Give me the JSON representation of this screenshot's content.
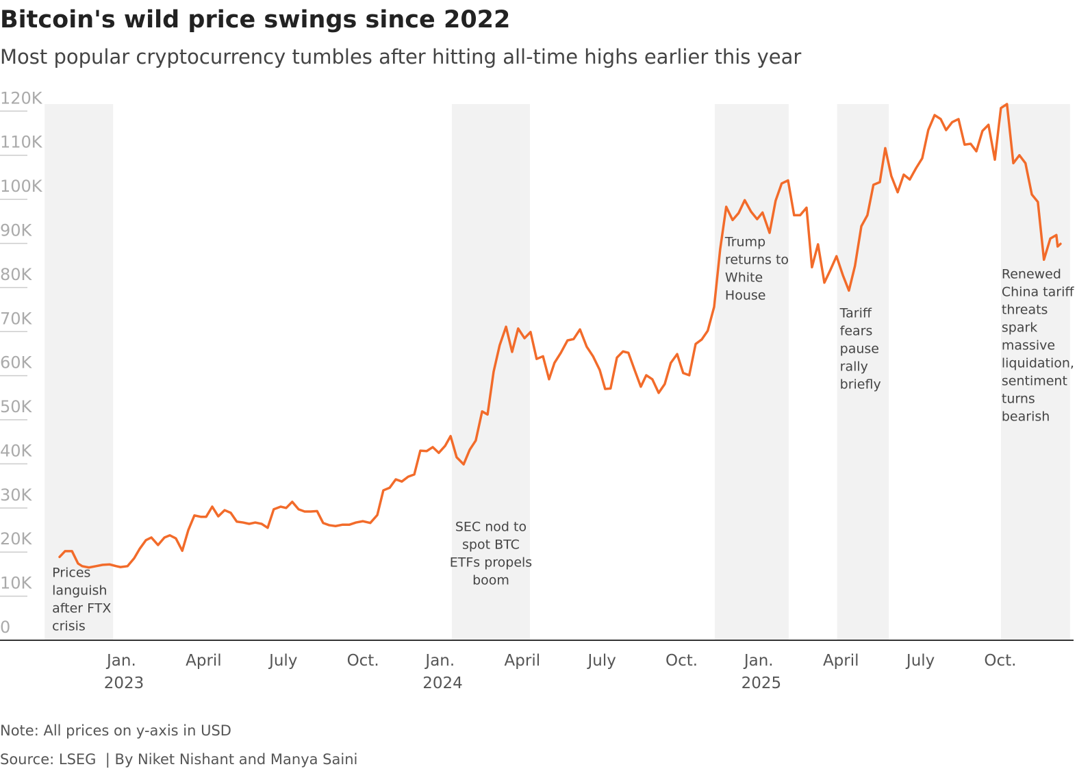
{
  "chart_data": {
    "type": "line",
    "title": "Bitcoin's wild price swings since 2022",
    "subtitle": "Most popular cryptocurrency tumbles after hitting all-time highs earlier this year",
    "note": "Note: All prices on y-axis in USD",
    "source": "Source: LSEG  | By Niket Nishant and Manya Saini",
    "color": "#f26b2a",
    "x": [
      2022.798,
      2022.815,
      2022.837,
      2022.856,
      2022.869,
      2022.89,
      2022.912,
      2022.933,
      2022.955,
      2022.976,
      2022.989,
      2023.011,
      2023.032,
      2023.049,
      2023.069,
      2023.086,
      2023.107,
      2023.127,
      2023.144,
      2023.163,
      2023.183,
      2023.202,
      2023.221,
      2023.241,
      2023.258,
      2023.277,
      2023.296,
      2023.316,
      2023.335,
      2023.354,
      2023.374,
      2023.393,
      2023.412,
      2023.432,
      2023.451,
      2023.47,
      2023.492,
      2023.509,
      2023.528,
      2023.548,
      2023.567,
      2023.586,
      2023.606,
      2023.625,
      2023.644,
      2023.664,
      2023.685,
      2023.707,
      2023.728,
      2023.75,
      2023.773,
      2023.795,
      2023.814,
      2023.834,
      2023.853,
      2023.872,
      2023.892,
      2023.911,
      2023.93,
      2023.95,
      2023.969,
      2023.988,
      2024.008,
      2024.025,
      2024.044,
      2024.066,
      2024.085,
      2024.104,
      2024.124,
      2024.141,
      2024.16,
      2024.179,
      2024.199,
      2024.218,
      2024.237,
      2024.257,
      2024.276,
      2024.295,
      2024.315,
      2024.334,
      2024.351,
      2024.371,
      2024.392,
      2024.411,
      2024.431,
      2024.452,
      2024.472,
      2024.493,
      2024.51,
      2024.527,
      2024.547,
      2024.566,
      2024.583,
      2024.603,
      2024.622,
      2024.639,
      2024.658,
      2024.678,
      2024.697,
      2024.716,
      2024.736,
      2024.755,
      2024.774,
      2024.794,
      2024.813,
      2024.832,
      2024.852,
      2024.871,
      2024.89,
      2024.91,
      2024.929,
      2024.948,
      2024.968,
      2024.987,
      2025.004,
      2025.026,
      2025.045,
      2025.064,
      2025.084,
      2025.103,
      2025.122,
      2025.142,
      2025.159,
      2025.178,
      2025.198,
      2025.217,
      2025.236,
      2025.256,
      2025.275,
      2025.294,
      2025.314,
      2025.333,
      2025.352,
      2025.372,
      2025.389,
      2025.408,
      2025.428,
      2025.447,
      2025.466,
      2025.486,
      2025.505,
      2025.524,
      2025.544,
      2025.563,
      2025.58,
      2025.599,
      2025.619,
      2025.638,
      2025.657,
      2025.675,
      2025.694,
      2025.713,
      2025.733,
      2025.752,
      2025.771,
      2025.791,
      2025.81,
      2025.829,
      2025.849,
      2025.868,
      2025.887,
      2025.907,
      2025.926,
      2025.93,
      2025.939
    ],
    "values": [
      18900,
      20200,
      20200,
      17400,
      16800,
      16500,
      16800,
      17100,
      17200,
      16800,
      16600,
      16800,
      18600,
      20700,
      22700,
      23300,
      21600,
      23300,
      23800,
      23100,
      20300,
      25000,
      28300,
      28000,
      28000,
      30300,
      28100,
      29500,
      28900,
      26900,
      26700,
      26400,
      26700,
      26400,
      25500,
      29700,
      30300,
      30000,
      31400,
      29700,
      29200,
      29200,
      29300,
      26600,
      26100,
      25900,
      26200,
      26200,
      26700,
      27000,
      26600,
      28400,
      34000,
      34600,
      36500,
      36000,
      37100,
      37600,
      43000,
      42900,
      43800,
      42500,
      44100,
      46300,
      41500,
      39900,
      43200,
      45300,
      51900,
      51200,
      60900,
      66900,
      71100,
      65400,
      70700,
      68500,
      69900,
      63800,
      64400,
      59200,
      62900,
      65200,
      68000,
      68300,
      70500,
      66600,
      64400,
      61300,
      57000,
      57100,
      64100,
      65500,
      65200,
      61200,
      57500,
      60100,
      59200,
      56100,
      58100,
      62900,
      64900,
      60600,
      60100,
      67200,
      68200,
      70200,
      75600,
      88700,
      98300,
      95300,
      96900,
      99800,
      97200,
      95500,
      97000,
      92400,
      99700,
      103600,
      104300,
      96400,
      96400,
      98100,
      84600,
      89800,
      81100,
      84000,
      87100,
      82800,
      79300,
      84900,
      93900,
      96400,
      103300,
      103900,
      111600,
      105300,
      101600,
      105600,
      104500,
      107100,
      109300,
      115700,
      119100,
      118200,
      115700,
      117500,
      118200,
      112400,
      112600,
      110900,
      115500,
      116900,
      109000,
      120700,
      121600,
      108200,
      110000,
      108200,
      101100,
      99400,
      86300,
      91100,
      91900,
      89300,
      89900
    ],
    "xlim": [
      2022.611,
      2025.98
    ],
    "xticks": [
      {
        "value": 2023,
        "label": "Jan. 2023"
      },
      {
        "value": 2023.25,
        "label": "April"
      },
      {
        "value": 2023.5,
        "label": "July"
      },
      {
        "value": 2023.75,
        "label": "Oct."
      },
      {
        "value": 2024,
        "label": "Jan. 2024"
      },
      {
        "value": 2024.25,
        "label": "April"
      },
      {
        "value": 2024.5,
        "label": "July"
      },
      {
        "value": 2024.75,
        "label": "Oct."
      },
      {
        "value": 2025,
        "label": "Jan. 2025"
      },
      {
        "value": 2025.25,
        "label": "April"
      },
      {
        "value": 2025.5,
        "label": "July"
      },
      {
        "value": 2025.75,
        "label": "Oct."
      }
    ],
    "ylim": [
      0,
      121600
    ],
    "yticks": [
      0,
      {
        "value": 10000,
        "label": "10K"
      },
      {
        "value": 20000,
        "label": "20K"
      },
      {
        "value": 30000,
        "label": "30K"
      },
      {
        "value": 40000,
        "label": "40K"
      },
      {
        "value": 50000,
        "label": "50K"
      },
      {
        "value": 60000,
        "label": "60K"
      },
      {
        "value": 70000,
        "label": "70K"
      },
      {
        "value": 80000,
        "label": "80K"
      },
      {
        "value": 90000,
        "label": "90K"
      },
      {
        "value": 100000,
        "label": "100K"
      },
      {
        "value": 110000,
        "label": "110K"
      },
      {
        "value": 120000,
        "label": "120K"
      }
    ],
    "highlights": [
      {
        "start": 2022.751,
        "end": 2022.966,
        "label_lines": [
          "Prices",
          "languish",
          "after FTX",
          "crisis"
        ]
      },
      {
        "start": 2024.029,
        "end": 2024.274,
        "label_lines": [
          "SEC nod to",
          "spot BTC",
          "ETFs propels",
          "boom"
        ]
      },
      {
        "start": 2024.854,
        "end": 2025.086,
        "label_lines": [
          "Trump",
          "returns to",
          "White",
          "House"
        ]
      },
      {
        "start": 2025.238,
        "end": 2025.4,
        "label_lines": [
          "Tariff",
          "fears",
          "pause",
          "rally",
          "briefly"
        ]
      },
      {
        "start": 2025.752,
        "end": 2025.969,
        "label_lines": [
          "Renewed",
          "China tariff",
          "threats",
          "spark",
          "massive",
          "liquidation,",
          "sentiment",
          "turns",
          "bearish"
        ]
      }
    ]
  }
}
